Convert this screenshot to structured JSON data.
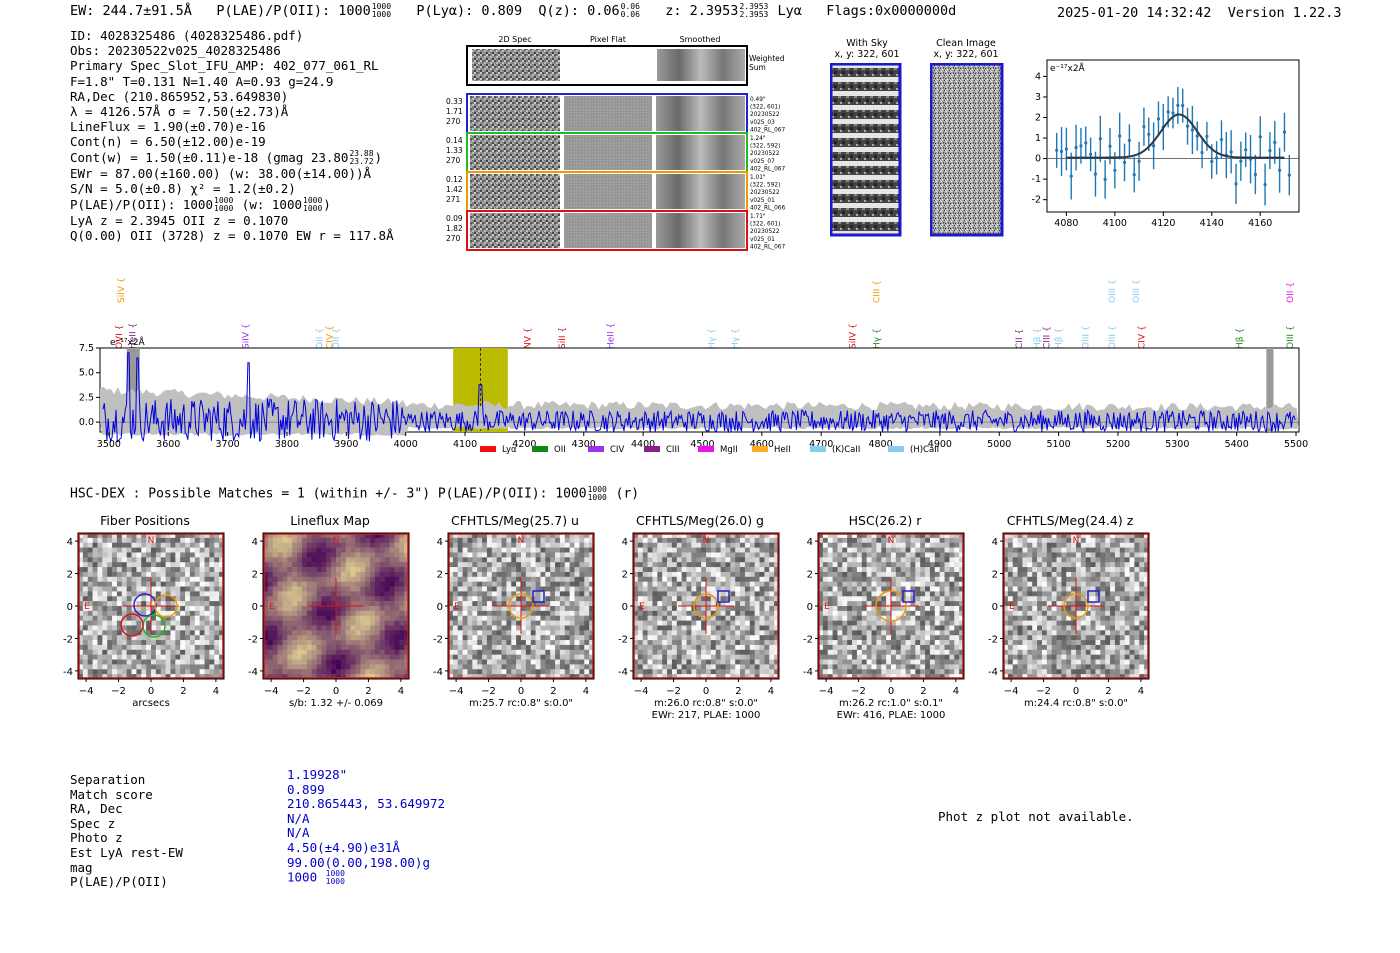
{
  "header": {
    "ew": "EW: 244.7±91.5Å",
    "plae_label": "P(LAE)/P(OII): 1000",
    "plae_frac": [
      "1000",
      "1000"
    ],
    "plya": "P(Lyα): 0.809",
    "qz_label": "Q(z): 0.06",
    "qz_frac": [
      "0.06",
      "0.06"
    ],
    "z_label": "z: 2.3953",
    "z_frac": [
      "2.3953",
      "2.3953"
    ],
    "line": "Lyα",
    "flags": "Flags:0x0000000d",
    "datetime": "2025-01-20 14:32:42",
    "version": "Version 1.22.3"
  },
  "info": {
    "id": "ID: 4028325486 (4028325486.pdf)",
    "obs": "Obs: 20230522v025_4028325486",
    "primary": "Primary Spec_Slot_IFU_AMP: 402_077_061_RL",
    "fiber": "F=1.8\"  T=0.131  N=1.40  A=0.93  g=24.9",
    "radec": "RA,Dec (210.865952,53.649830)",
    "lambda": "λ = 4126.57Å  σ = 7.50(±2.73)Å",
    "lineflux": "LineFlux = 1.90(±0.70)e-16",
    "contn": "Cont(n) = 6.50(±12.00)e-19",
    "contw": "Cont(w) = 1.50(±0.11)e-18 (gmag 23.80",
    "contw_frac": [
      "23.88",
      "23.72"
    ],
    "ewr": "EWr = 87.00(±160.00) (w: 38.00(±14.00))Å",
    "sn": "S/N = 5.0(±0.8)  χ² = 1.2(±0.2)",
    "plae": "P(LAE)/P(OII): 1000",
    "plae_frac": [
      "1000",
      "1000"
    ],
    "plae_w": "(w: 1000",
    "plae_w_frac": [
      "1000",
      "1000"
    ],
    "lya": "LyA z = 2.3945  OII z = 0.1070",
    "q": "Q(0.00) OII (3728) z = 0.1070  EW r = 117.8Å"
  },
  "stamps": {
    "col_headers": [
      "2D Spec",
      "Pixel Flat",
      "Smoothed"
    ],
    "weighted_sum": "Weighted Sum",
    "rows": [
      {
        "left": [
          "0.33",
          "1.71",
          "270"
        ],
        "right": [
          "0.49\"",
          "(322, 601)",
          "20230522",
          "v025_03",
          "402_RL_067"
        ],
        "color": "#2222cc"
      },
      {
        "left": [
          "0.14",
          "1.33",
          "270"
        ],
        "right": [
          "1.24\"",
          "(322, 592)",
          "20230522",
          "v025_07",
          "402_RL_067"
        ],
        "color": "#22bb22"
      },
      {
        "left": [
          "0.12",
          "1.42",
          "271"
        ],
        "right": [
          "1.01\"",
          "(322, 592)",
          "20230522",
          "v025_01",
          "402_RL_066"
        ],
        "color": "#ee9900"
      },
      {
        "left": [
          "0.09",
          "1.82",
          "270"
        ],
        "right": [
          "1.71\"",
          "(322, 601)",
          "20230522",
          "v025_01",
          "402_RL_067"
        ],
        "color": "#dd1111"
      }
    ]
  },
  "sky": {
    "with_sky": "With Sky",
    "with_sky_xy": "x, y: 322, 601",
    "clean": "Clean Image",
    "clean_xy": "x, y: 322, 601"
  },
  "zoom_plot": {
    "unit": "e⁻¹⁷x2Å",
    "x_ticks": [
      "4080",
      "4100",
      "4120",
      "4140",
      "4160"
    ],
    "y_ticks": [
      "4",
      "3",
      "2",
      "1",
      "0",
      "-1",
      "-2"
    ]
  },
  "spectrum": {
    "unit": "e⁻¹⁷x2Å",
    "y_ticks": [
      "7.5",
      "5.0",
      "2.5",
      "0.0"
    ],
    "x_ticks": [
      "3500",
      "3600",
      "3700",
      "3800",
      "3900",
      "4000",
      "4100",
      "4200",
      "4300",
      "4400",
      "4500",
      "4600",
      "4700",
      "4800",
      "4900",
      "5000",
      "5100",
      "5200",
      "5300",
      "5400",
      "5500"
    ],
    "line_labels": [
      {
        "t": "SiIV",
        "c": "#ee9900",
        "row": 0
      },
      {
        "t": "OVI",
        "c": "#dd1111",
        "row": 1
      },
      {
        "t": "HeII",
        "c": "#882288",
        "row": 1
      },
      {
        "t": "SiIV",
        "c": "#9933ee",
        "row": 1
      },
      {
        "t": "OII",
        "c": "#88ccee",
        "row": 1
      },
      {
        "t": "CIV",
        "c": "#ee9900",
        "row": 1
      },
      {
        "t": "OII",
        "c": "#88ccee",
        "row": 1
      },
      {
        "t": "NV",
        "c": "#dd1111",
        "row": 1
      },
      {
        "t": "SiII",
        "c": "#dd1111",
        "row": 1
      },
      {
        "t": "HeII",
        "c": "#9933ee",
        "row": 1
      },
      {
        "t": "Hγ",
        "c": "#88ccee",
        "row": 1
      },
      {
        "t": "Hγ",
        "c": "#88ccee",
        "row": 1
      },
      {
        "t": "SiIV",
        "c": "#dd1111",
        "row": 1
      },
      {
        "t": "CIII",
        "c": "#ee9900",
        "row": 0
      },
      {
        "t": "Hγ",
        "c": "#228822",
        "row": 1
      },
      {
        "t": "CII",
        "c": "#882288",
        "row": 1
      },
      {
        "t": "Hβ",
        "c": "#88ccee",
        "row": 1
      },
      {
        "t": "CIII",
        "c": "#882288",
        "row": 1
      },
      {
        "t": "Hβ",
        "c": "#88ccee",
        "row": 1
      },
      {
        "t": "OIII",
        "c": "#88ccee",
        "row": 1
      },
      {
        "t": "OIII",
        "c": "#88ccee",
        "row": 0
      },
      {
        "t": "OIII",
        "c": "#88ccee",
        "row": 1
      },
      {
        "t": "OIII",
        "c": "#88ccee",
        "row": 0
      },
      {
        "t": "CIV",
        "c": "#dd1111",
        "row": 1
      },
      {
        "t": "Hβ",
        "c": "#228822",
        "row": 1
      },
      {
        "t": "OII",
        "c": "#ee11ee",
        "row": 0
      },
      {
        "t": "OIII",
        "c": "#228822",
        "row": 1
      }
    ],
    "legend": [
      {
        "t": "Lyα",
        "c": "#ee1111"
      },
      {
        "t": "OII",
        "c": "#118811"
      },
      {
        "t": "CIV",
        "c": "#9933ee"
      },
      {
        "t": "CIII",
        "c": "#882288"
      },
      {
        "t": "MgII",
        "c": "#ee11ee"
      },
      {
        "t": "HeII",
        "c": "#ffaa22"
      },
      {
        "t": "(K)CaII",
        "c": "#88ccee"
      },
      {
        "t": "(H)CaII",
        "c": "#88ccee"
      }
    ]
  },
  "hsc": {
    "title": "HSC-DEX : Possible Matches = 1 (within +/- 3\")  P(LAE)/P(OII): 1000",
    "title_frac": [
      "1000",
      "1000"
    ],
    "title_suffix": "(r)",
    "panels": [
      {
        "title": "Fiber Positions",
        "cap1": "arcsecs",
        "cap2": ""
      },
      {
        "title": "Lineflux Map",
        "cap1": "s/b: 1.32 +/- 0.069",
        "cap2": ""
      },
      {
        "title": "CFHTLS/Meg(25.7) u",
        "cap1": "m:25.7 rc:0.8\"  s:0.0\"",
        "cap2": ""
      },
      {
        "title": "CFHTLS/Meg(26.0) g",
        "cap1": "m:26.0 rc:0.8\"  s:0.0\"",
        "cap2": "EWr: 217, PLAE: 1000"
      },
      {
        "title": "HSC(26.2) r",
        "cap1": "m:26.2 rc:1.0\"  s:0.1\"",
        "cap2": "EWr: 416, PLAE: 1000"
      },
      {
        "title": "CFHTLS/Meg(24.4) z",
        "cap1": "m:24.4 rc:0.8\"  s:0.0\"",
        "cap2": ""
      }
    ],
    "ticks": [
      "4",
      "2",
      "0",
      "-2",
      "-4"
    ],
    "xticks": [
      "−4",
      "−2",
      "0",
      "2",
      "4"
    ],
    "n": "N",
    "e": "E"
  },
  "match": {
    "labels": [
      "Separation",
      "Match score",
      "RA, Dec",
      "Spec z",
      "Photo z",
      "Est LyA rest-EW",
      "mag",
      "P(LAE)/P(OII)"
    ],
    "values": [
      "1.19928\"",
      "0.899",
      "210.865443, 53.649972",
      "N/A",
      "N/A",
      "4.50(±4.90)e31Å",
      "99.00(0.00,198.00)g",
      "1000"
    ],
    "plae_frac": [
      "1000",
      "1000"
    ],
    "phot_z": "Phot z plot not available."
  }
}
